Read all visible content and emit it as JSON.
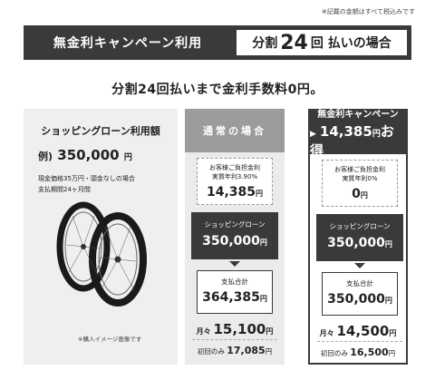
{
  "tax_note": "※記載の金額はすべて税込みです",
  "banner": {
    "campaign_title": "無金利キャンペーン利用",
    "installment_prefix": "分割",
    "installment_count": "24",
    "installment_suffix": "回 払いの場合"
  },
  "headline": "分割24回払いまで金利手数料0円。",
  "left_panel": {
    "title": "ショッピングローン利用額",
    "example_prefix": "例)",
    "example_amount": "350,000",
    "example_unit": "円",
    "condition_1": "現金価格35万円・頭金なしの場合",
    "condition_2": "支払期間24ヶ月間",
    "image_note": "※購入イメージ画像です"
  },
  "columns": [
    {
      "header": "通常の場合",
      "fee_line1": "お客様ご負担金利",
      "fee_line2": "実質年利3.90%",
      "fee_amount": "14,385",
      "loan_label": "ショッピングローン",
      "loan_amount": "350,000",
      "total_label": "支払合計",
      "total_amount": "364,385",
      "monthly_prefix": "月々",
      "monthly_amount": "15,100",
      "first_prefix": "初回のみ",
      "first_amount": "17,085",
      "yen": "円"
    },
    {
      "header": "無金利キャンペーン",
      "savings_arrow": "▶",
      "savings_amount": "14,385",
      "savings_yen": "円",
      "savings_suffix": "お得",
      "fee_line1": "お客様ご負担金利",
      "fee_line2": "実質年利0%",
      "fee_amount": "0",
      "loan_label": "ショッピングローン",
      "loan_amount": "350,000",
      "total_label": "支払合計",
      "total_amount": "350,000",
      "monthly_prefix": "月々",
      "monthly_amount": "14,500",
      "first_prefix": "初回のみ",
      "first_amount": "16,500",
      "yen": "円"
    }
  ],
  "colors": {
    "dark": "#3a3a3a",
    "gray_header": "#9b9b9b",
    "panel_bg": "#efefef"
  }
}
